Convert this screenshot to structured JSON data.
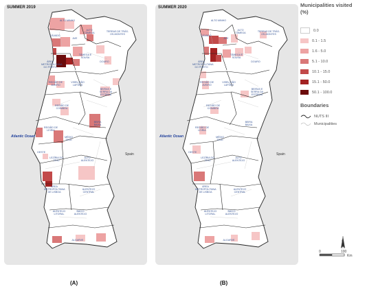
{
  "panels": [
    {
      "title": "SUMMER 2019",
      "caption": "(A)"
    },
    {
      "title": "SUMMER 2020",
      "caption": "(B)"
    }
  ],
  "regions": [
    "ALTO MINHO",
    "CÁVADO",
    "AVE",
    "ALTO TÂMEGA",
    "TERRAS DE TRÁS-OS-MONTES",
    "ÁREA METROPOLITANA DO PORTO",
    "TÂMEGA E SOUSA",
    "DOURO",
    "REGIÃO DE AVEIRO",
    "VISEU DÃO LAFÕES",
    "BEIRA BAIXA",
    "BEIRAS E SERRA DA ESTRELA",
    "REGIÃO DE COIMBRA",
    "REGIÃO DE LEIRIA",
    "MÉDIO TEJO",
    "OESTE",
    "LEZÍRIA DO TEJO",
    "ALTO ALENTEJO",
    "ÁREA METROPOLITANA DE LISBOA",
    "ALENTEJO CENTRAL",
    "ALENTEJO LITORAL",
    "BAIXO ALENTEJO",
    "ALGARVE"
  ],
  "ocean_label": "Atlantic Ocean",
  "spain_label": "Spain",
  "legend": {
    "title": "Municipalities visited",
    "unit": "(%)",
    "classes": [
      {
        "label": "0.0",
        "color": "#ffffff"
      },
      {
        "label": "0.1 - 1.5",
        "color": "#f6c6c6"
      },
      {
        "label": "1.6 - 5.0",
        "color": "#eda3a3"
      },
      {
        "label": "5.1 - 10.0",
        "color": "#d97878"
      },
      {
        "label": "10.1 - 15.0",
        "color": "#c24a4a"
      },
      {
        "label": "15.1 - 50.0",
        "color": "#a32222"
      },
      {
        "label": "50.1 - 100.0",
        "color": "#6b0b0b"
      }
    ],
    "boundaries_title": "Boundaries",
    "nuts_label": "NUTS III",
    "municipalities_label": "Municipalities"
  },
  "scale": {
    "start": "0",
    "end": "100",
    "unit": "Km",
    "north": "N"
  }
}
